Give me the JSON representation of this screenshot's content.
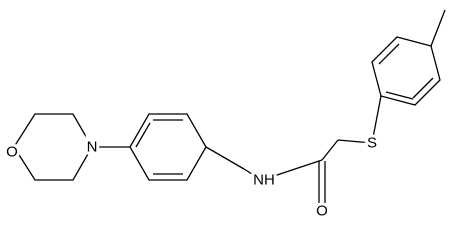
{
  "atoms": {
    "labels": [
      "O",
      "N",
      "NH",
      "O",
      "S"
    ]
  }
}
